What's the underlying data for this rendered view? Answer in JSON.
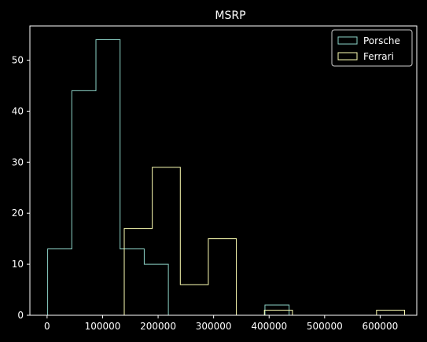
{
  "chart_data": {
    "type": "histogram",
    "title": "MSRP",
    "xlabel": "",
    "ylabel": "",
    "xlim": [
      -31000,
      666000
    ],
    "ylim": [
      0,
      56.7
    ],
    "xticks": [
      0,
      100000,
      200000,
      300000,
      400000,
      500000,
      600000
    ],
    "yticks": [
      0,
      10,
      20,
      30,
      40,
      50
    ],
    "legend_position": "top-right",
    "grid": false,
    "background": "#000000",
    "series": [
      {
        "name": "Porsche",
        "color": "#8dd3c7",
        "edges": [
          1000,
          44500,
          88000,
          131500,
          175000,
          218500,
          262000,
          305500,
          349000,
          392500,
          436000
        ],
        "counts": [
          13,
          44,
          54,
          13,
          10,
          0,
          0,
          0,
          0,
          2
        ]
      },
      {
        "name": "Ferrari",
        "color": "#feffb3",
        "edges": [
          139000,
          189500,
          240000,
          290500,
          341000,
          391500,
          442000,
          492500,
          543000,
          593500,
          644000
        ],
        "counts": [
          17,
          29,
          6,
          15,
          0,
          1,
          0,
          0,
          0,
          1
        ]
      }
    ]
  }
}
